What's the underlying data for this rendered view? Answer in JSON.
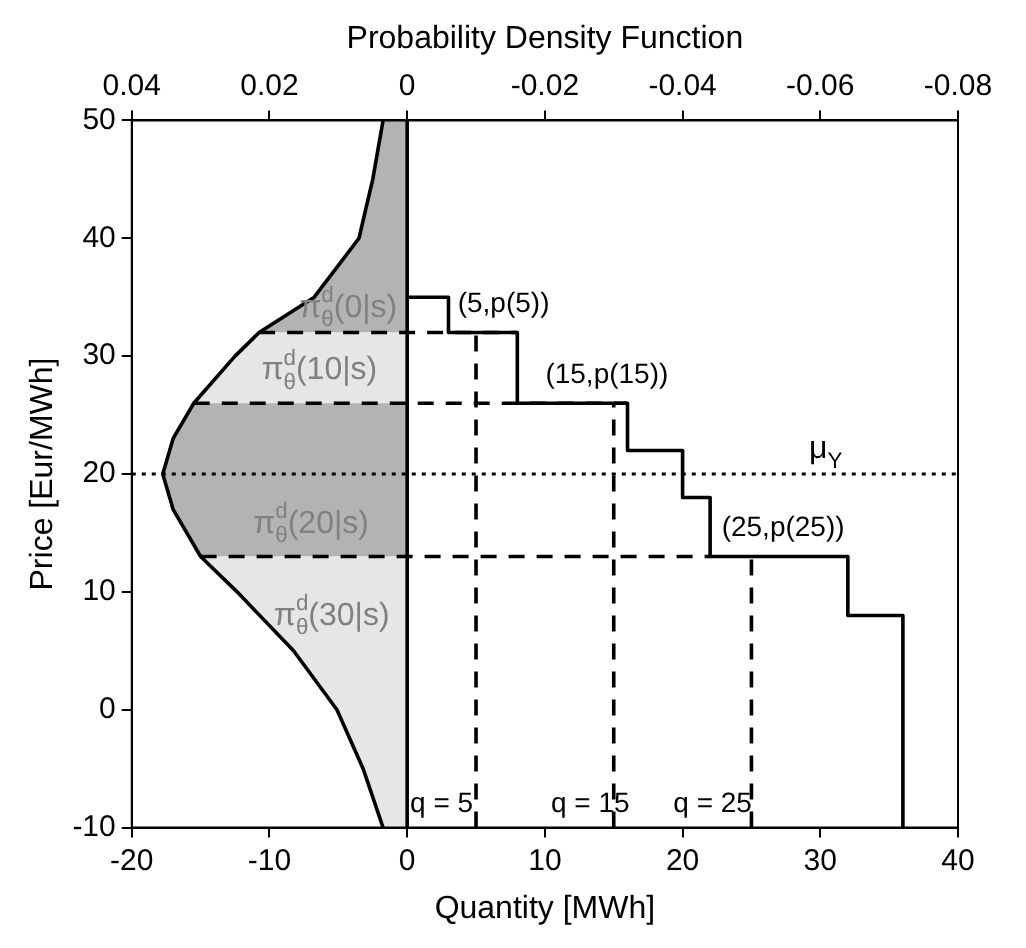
{
  "chart_data": {
    "type": "line",
    "xlabel": "Quantity [MWh]",
    "x2label": "Probability Density Function",
    "ylabel": "Price [Eur/MWh]",
    "xlim": [
      -20,
      40
    ],
    "xticks": [
      -20,
      -10,
      0,
      10,
      20,
      30,
      40
    ],
    "x2lim": [
      0.04,
      -0.08
    ],
    "x2ticks": [
      0.04,
      0.02,
      0,
      -0.02,
      -0.04,
      -0.06,
      -0.08
    ],
    "ylim": [
      -10,
      50
    ],
    "yticks": [
      -10,
      0,
      10,
      20,
      30,
      40,
      50
    ],
    "grid": false,
    "legend": false,
    "marker": "none",
    "series": [
      {
        "type": "area",
        "axis": "x2",
        "color": "#b3b3b3",
        "x": [
          0,
          0.0035,
          0.005,
          0.007,
          0.0135,
          0.0215,
          0
        ],
        "values": [
          50,
          50,
          45,
          40,
          35,
          32,
          32
        ]
      },
      {
        "type": "area",
        "axis": "x2",
        "color": "#e6e6e6",
        "x": [
          0,
          0.0215,
          0.025,
          0.031,
          0
        ],
        "values": [
          32,
          32,
          30,
          26,
          26
        ]
      },
      {
        "type": "area",
        "axis": "x2",
        "color": "#b3b3b3",
        "x": [
          0,
          0.031,
          0.034,
          0.0355,
          0.034,
          0.03,
          0
        ],
        "values": [
          26,
          26,
          23,
          20,
          17,
          13,
          13
        ]
      },
      {
        "type": "area",
        "axis": "x2",
        "color": "#e6e6e6",
        "x": [
          0,
          0.03,
          0.0247,
          0.0165,
          0.0102,
          0.0064,
          0.0035,
          0
        ],
        "values": [
          13,
          13,
          10,
          5,
          0,
          -5,
          -10,
          -10
        ]
      },
      {
        "type": "line",
        "axis": "x2",
        "color": "#000000",
        "line_style": "solid",
        "x": [
          0.0035,
          0.005,
          0.007,
          0.0135,
          0.0215,
          0.025,
          0.031,
          0.034,
          0.0355,
          0.034,
          0.03,
          0.0247,
          0.0165,
          0.0102,
          0.0064,
          0.0035
        ],
        "values": [
          50,
          45,
          40,
          35,
          32,
          30,
          26,
          23,
          20,
          17,
          13,
          10,
          5,
          0,
          -5,
          -10
        ]
      },
      {
        "type": "line",
        "color": "#000000",
        "line_style": "dashed",
        "x": [
          -10.75,
          8
        ],
        "values": [
          32,
          32
        ]
      },
      {
        "type": "line",
        "color": "#000000",
        "line_style": "dashed",
        "x": [
          -15.5,
          16
        ],
        "values": [
          26,
          26
        ]
      },
      {
        "type": "line",
        "color": "#000000",
        "line_style": "dashed",
        "x": [
          -15,
          22
        ],
        "values": [
          13,
          13
        ]
      },
      {
        "type": "line",
        "color": "#000000",
        "line_style": "dashed",
        "x": [
          5,
          5
        ],
        "values": [
          -10,
          32
        ]
      },
      {
        "type": "line",
        "color": "#000000",
        "line_style": "dashed",
        "x": [
          15,
          15
        ],
        "values": [
          -10,
          26
        ]
      },
      {
        "type": "line",
        "color": "#000000",
        "line_style": "dashed",
        "x": [
          25,
          25
        ],
        "values": [
          -10,
          13
        ]
      },
      {
        "type": "step",
        "color": "#000000",
        "line_style": "solid",
        "x": [
          0,
          3,
          8,
          16,
          20,
          22,
          32,
          36
        ],
        "values": [
          35,
          32,
          26,
          22,
          18,
          13,
          8,
          -10
        ]
      }
    ],
    "ref_lines": [
      {
        "axis": "y",
        "value": 20,
        "label": "μ$_{Y}$",
        "line_style": "dotted",
        "color": "#000000"
      },
      {
        "axis": "x",
        "value": 0,
        "line_style": "solid",
        "color": "#000000"
      }
    ],
    "annotations": [
      "π$^{d}$$_{θ}$(0|s)",
      "π$^{d}$$_{θ}$(10|s)",
      "π$^{d}$$_{θ}$(20|s)",
      "π$^{d}$$_{θ}$(30|s)",
      {
        "text": "(5,p(5))",
        "x": 7,
        "y": 33
      },
      {
        "text": "(15,p(15))",
        "x": 14.5,
        "y": 27
      },
      {
        "text": "(25,p(25))",
        "x": 27.3,
        "y": 14
      },
      "q = 5",
      "q = 15",
      "q = 25"
    ]
  }
}
